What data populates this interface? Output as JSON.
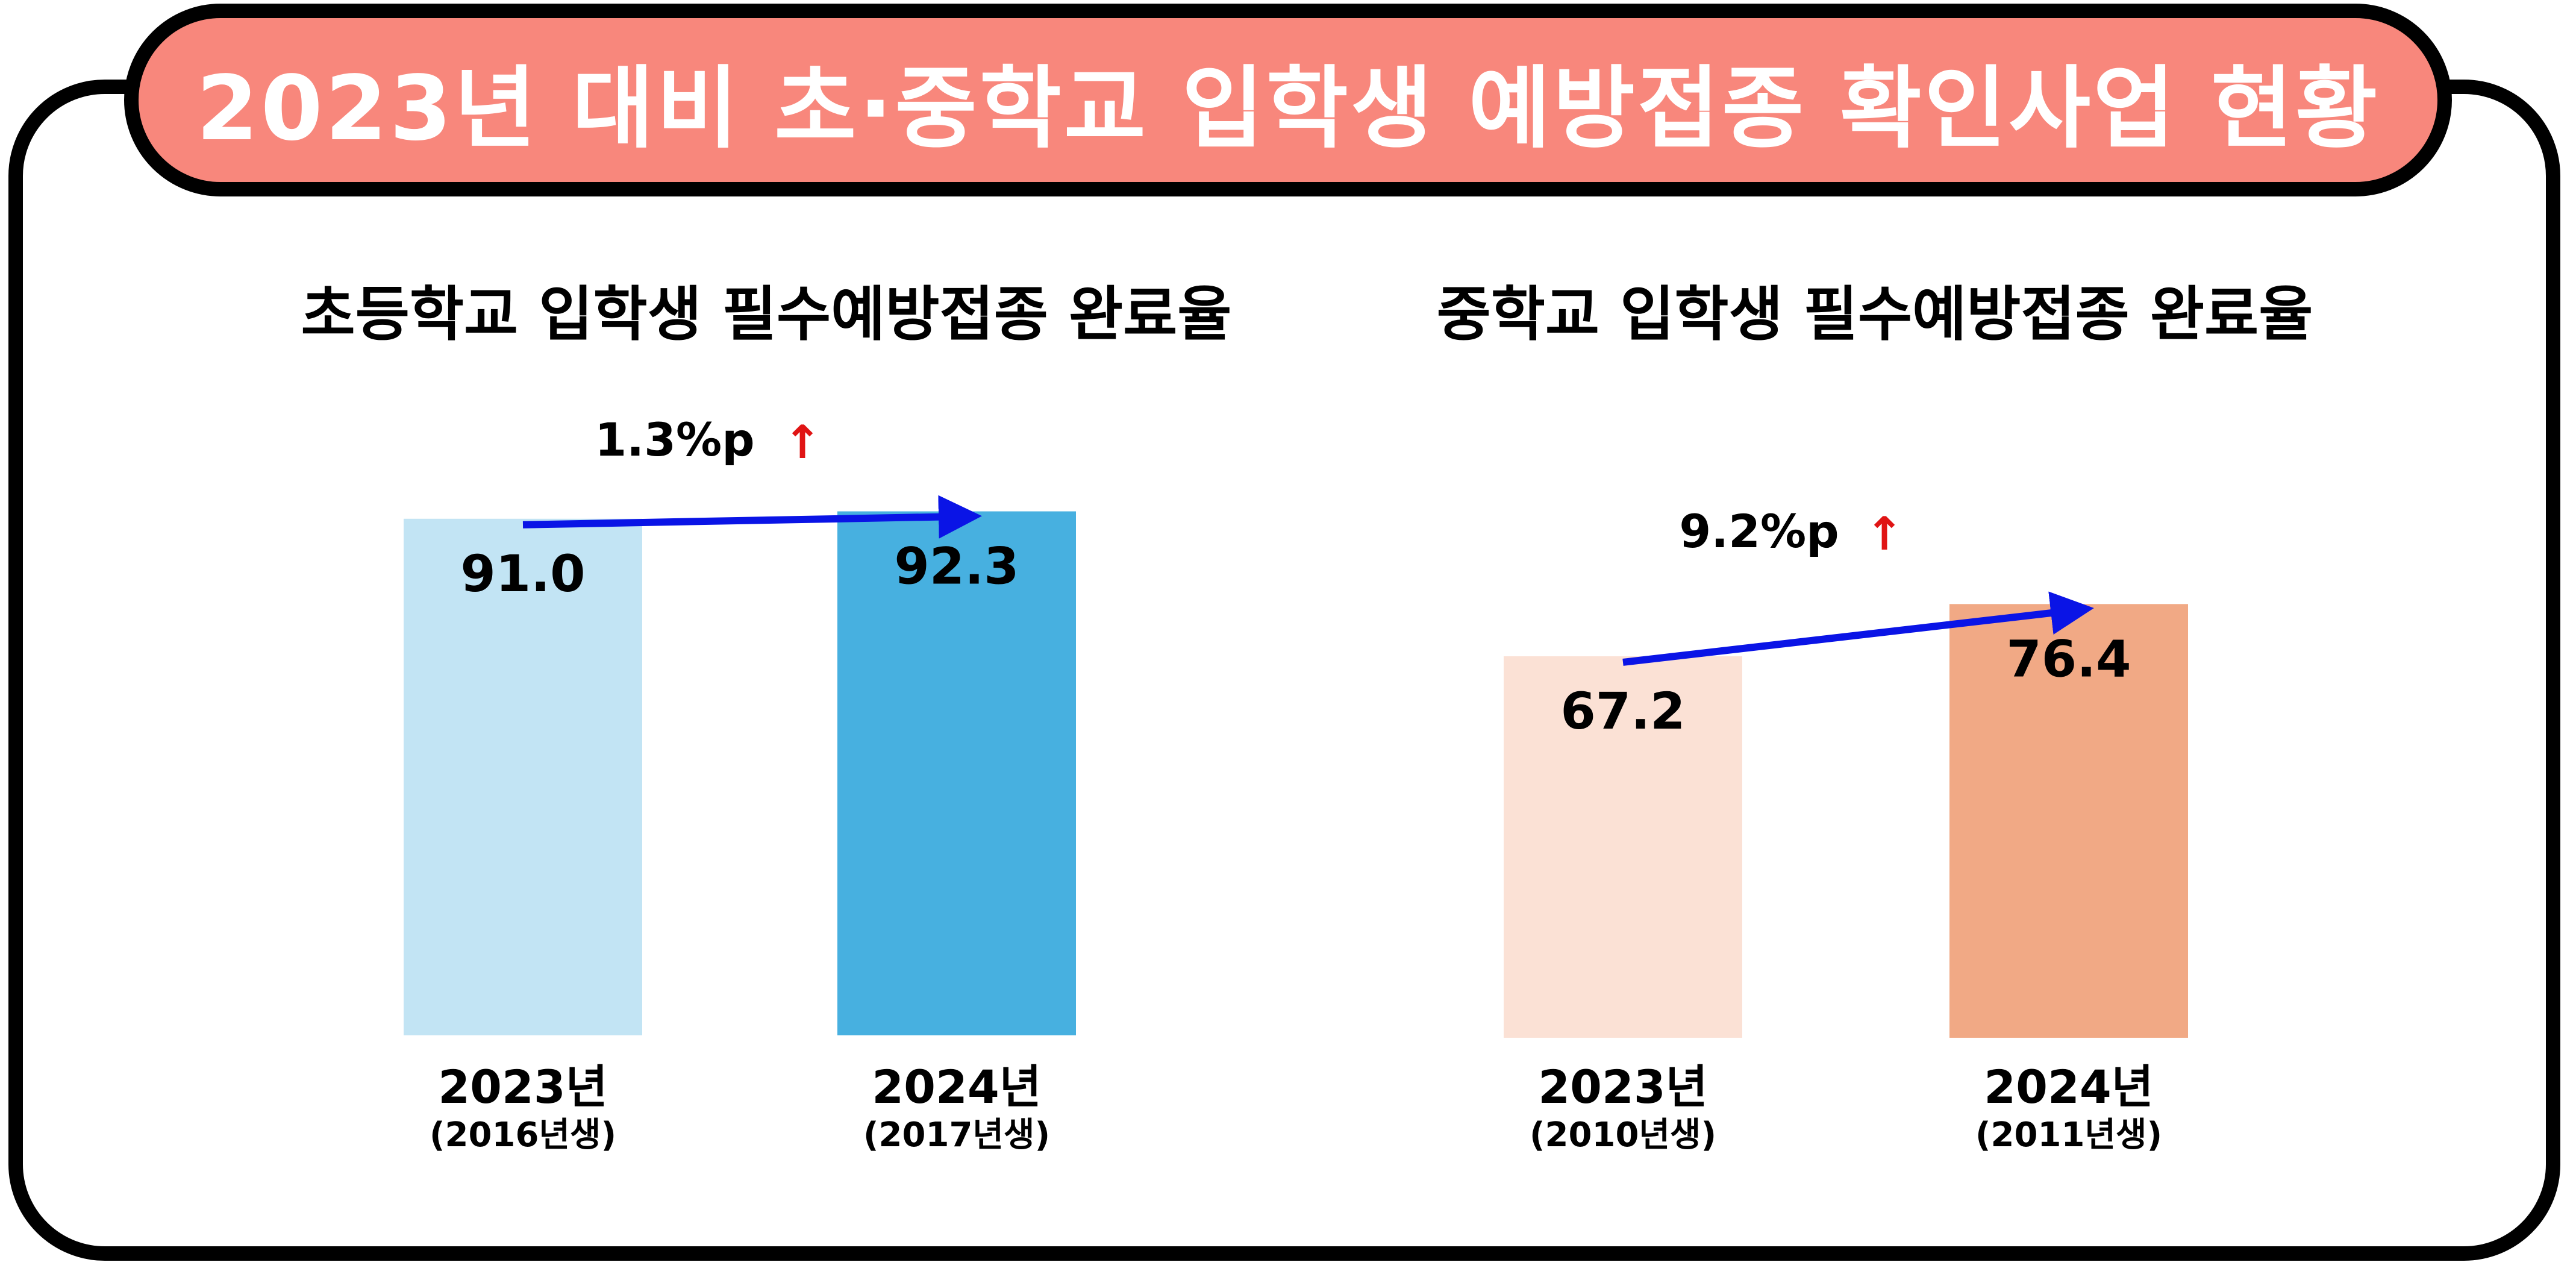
{
  "header": {
    "title": "2023년 대비 초·중학교 입학생 예방접종 확인사업 현황"
  },
  "chart_data": [
    {
      "type": "bar",
      "title": "초등학교 입학생 필수예방접종 완료율",
      "categories": [
        {
          "label": "2023년",
          "sub": "(2016년생)"
        },
        {
          "label": "2024년",
          "sub": "(2017년생)"
        }
      ],
      "values": [
        91.0,
        92.3
      ],
      "value_labels": [
        "91.0",
        "92.3"
      ],
      "colors": [
        "#c2e4f4",
        "#47b0e0"
      ],
      "change_label": "1.3%p",
      "change_symbol": "↑",
      "arrow_color": "#0a14e6",
      "change_symbol_color": "#e01414"
    },
    {
      "type": "bar",
      "title": "중학교 입학생  필수예방접종 완료율",
      "categories": [
        {
          "label": "2023년",
          "sub": "(2010년생)"
        },
        {
          "label": "2024년",
          "sub": "(2011년생)"
        }
      ],
      "values": [
        67.2,
        76.4
      ],
      "value_labels": [
        "67.2",
        "76.4"
      ],
      "colors": [
        "#fbe1d5",
        "#f1a985"
      ],
      "change_label": "9.2%p",
      "change_symbol": "↑",
      "arrow_color": "#0a14e6",
      "change_symbol_color": "#e01414"
    }
  ]
}
